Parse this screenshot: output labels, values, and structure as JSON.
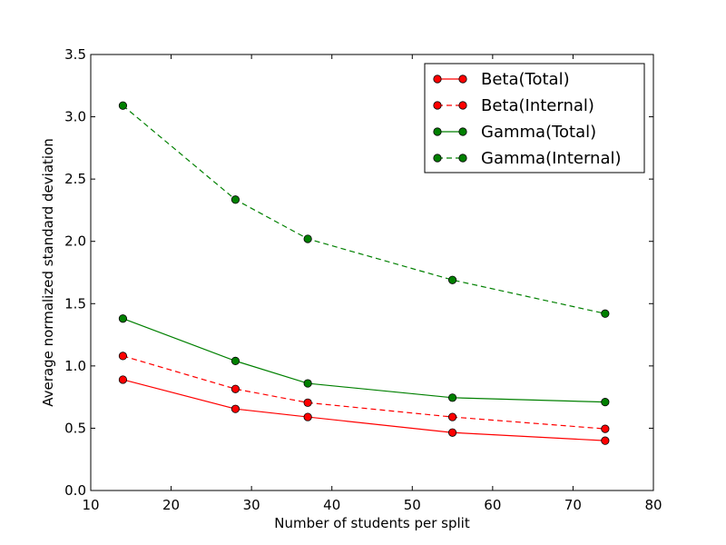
{
  "chart_data": {
    "type": "line",
    "title": "",
    "xlabel": "Number of students per split",
    "ylabel": "Average normalized standard deviation",
    "xlim": [
      10,
      80
    ],
    "ylim": [
      0.0,
      3.5
    ],
    "xticks": [
      10,
      20,
      30,
      40,
      50,
      60,
      70,
      80
    ],
    "xtick_labels": [
      "10",
      "20",
      "30",
      "40",
      "50",
      "60",
      "70",
      "80"
    ],
    "yticks": [
      0.0,
      0.5,
      1.0,
      1.5,
      2.0,
      2.5,
      3.0,
      3.5
    ],
    "ytick_labels": [
      "0.0",
      "0.5",
      "1.0",
      "1.5",
      "2.0",
      "2.5",
      "3.0",
      "3.5"
    ],
    "grid": false,
    "legend_position": "top-right",
    "x": [
      14,
      28,
      37,
      55,
      74
    ],
    "series": [
      {
        "name": "Beta(Total)",
        "color": "#ff0000",
        "dash": "solid",
        "values": [
          0.89,
          0.655,
          0.59,
          0.465,
          0.4
        ]
      },
      {
        "name": "Beta(Internal)",
        "color": "#ff0000",
        "dash": "dashed",
        "values": [
          1.08,
          0.815,
          0.705,
          0.59,
          0.495
        ]
      },
      {
        "name": "Gamma(Total)",
        "color": "#008000",
        "dash": "solid",
        "values": [
          1.38,
          1.04,
          0.86,
          0.745,
          0.71
        ]
      },
      {
        "name": "Gamma(Internal)",
        "color": "#008000",
        "dash": "dashed",
        "values": [
          3.09,
          2.335,
          2.02,
          1.69,
          1.42
        ]
      }
    ]
  }
}
